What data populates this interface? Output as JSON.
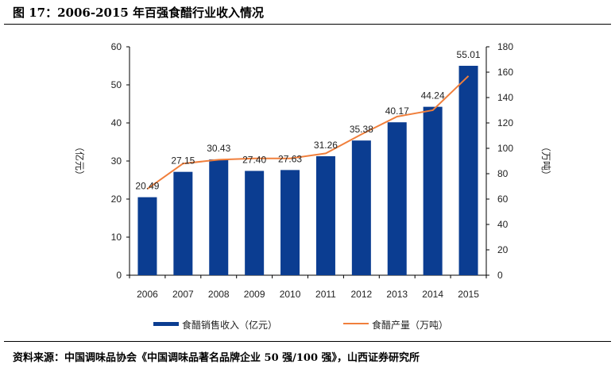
{
  "title": "图 17：2006-2015 年百强食醋行业收入情况",
  "source": "资料来源：中国调味品协会《中国调味品著名品牌企业 50 强/100 强》，山西证券研究所",
  "chart_data": {
    "type": "bar+line",
    "categories": [
      "2006",
      "2007",
      "2008",
      "2009",
      "2010",
      "2011",
      "2012",
      "2013",
      "2014",
      "2015"
    ],
    "series": [
      {
        "name": "食醋销售收入（亿元）",
        "type": "bar",
        "axis": "left",
        "color": "#0B3D91",
        "values": [
          20.49,
          27.15,
          30.43,
          27.4,
          27.63,
          31.26,
          35.38,
          40.17,
          44.24,
          55.01
        ],
        "labels": [
          "20.49",
          "27.15",
          "30.43",
          "27.40",
          "27.63",
          "31.26",
          "35.38",
          "40.17",
          "44.24",
          "55.01"
        ]
      },
      {
        "name": "食醋产量（万吨）",
        "type": "line",
        "axis": "right",
        "color": "#F07F3C",
        "values": [
          68,
          88,
          91,
          92,
          92,
          96,
          111,
          125,
          130,
          157
        ]
      }
    ],
    "ylabel_left": "（亿元）",
    "ylabel_right": "（万吨）",
    "ylim_left": [
      0,
      60
    ],
    "yticks_left": [
      "0",
      "10",
      "20",
      "30",
      "40",
      "50",
      "60"
    ],
    "ylim_right": [
      0,
      180
    ],
    "yticks_right": [
      "0",
      "20",
      "40",
      "60",
      "80",
      "100",
      "120",
      "140",
      "160",
      "180"
    ],
    "grid": false,
    "legend": "bottom"
  }
}
